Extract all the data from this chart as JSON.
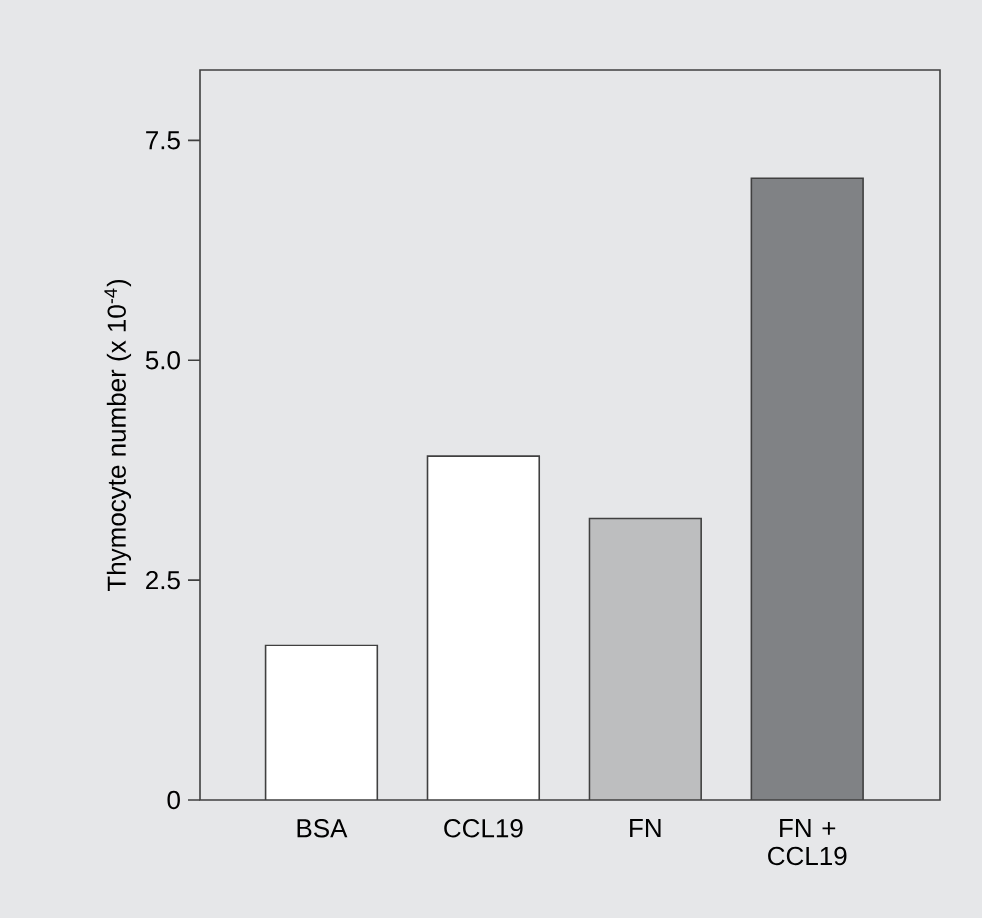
{
  "chart_data": {
    "type": "bar",
    "ylabel": "Thymocyte number (x 10$^{-4}$)",
    "categories": [
      "BSA",
      "CCL19",
      "FN",
      "FN + CCL19"
    ],
    "values": [
      1.76,
      3.91,
      3.2,
      7.07
    ],
    "colors": [
      "#ffffff",
      "#ffffff",
      "#bdbebf",
      "#808285"
    ],
    "ylim": [
      0,
      8.3
    ],
    "yticks": [
      0,
      2.5,
      {
        "value": 5,
        "label": "5.0"
      },
      7.5
    ]
  }
}
